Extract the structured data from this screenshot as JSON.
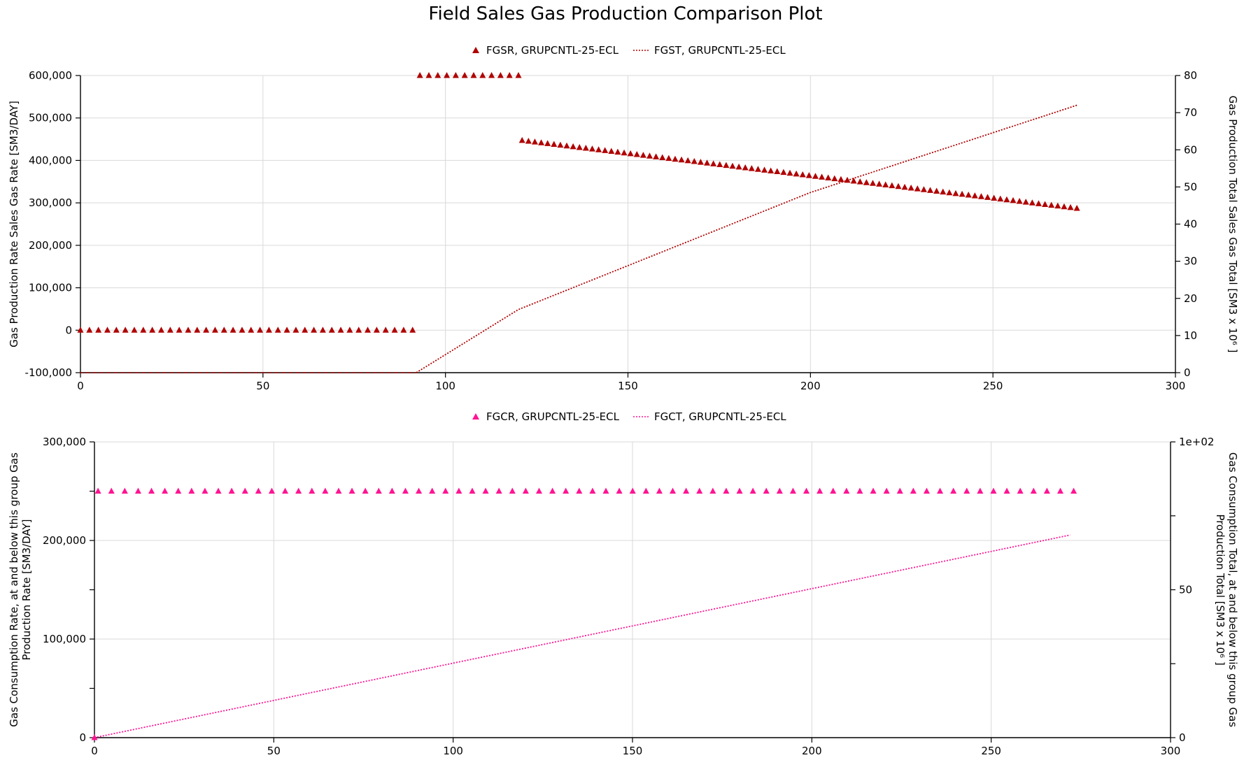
{
  "title": "Field Sales Gas Production Comparison Plot",
  "colors": {
    "panel1": "#b00000",
    "panel2": "#ff1493"
  },
  "chart_data": [
    {
      "type": "scatter",
      "legend": [
        {
          "label": "FGSR, GRUPCNTL-25-ECL",
          "marker": "triangle"
        },
        {
          "label": "FGST, GRUPCNTL-25-ECL",
          "marker": "dotted-line"
        }
      ],
      "x_axis": {
        "ticks": [
          0,
          50,
          100,
          150,
          200,
          250,
          300
        ],
        "tick_labels": [
          "0",
          "50",
          "100",
          "150",
          "200",
          "250",
          "300"
        ],
        "range": [
          0,
          300
        ]
      },
      "y_left": {
        "label": "Gas Production Rate Sales Gas Rate [SM3/DAY]",
        "range": [
          -100000,
          600000
        ],
        "ticks": [
          -100000,
          0,
          100000,
          200000,
          300000,
          400000,
          500000,
          600000
        ],
        "tick_labels": [
          "-100,000",
          "0",
          "100,000",
          "200,000",
          "300,000",
          "400,000",
          "500,000",
          "600,000"
        ]
      },
      "y_right": {
        "label": "Gas Production Total Sales Gas Total [SM3 x 10⁶ ]",
        "range": [
          0,
          80
        ],
        "ticks": [
          0,
          10,
          20,
          30,
          40,
          50,
          60,
          70,
          80
        ],
        "tick_labels": [
          "0",
          "10",
          "20",
          "30",
          "40",
          "50",
          "60",
          "70",
          "80"
        ]
      },
      "series": [
        {
          "name": "FGSR, GRUPCNTL-25-ECL",
          "axis": "left",
          "style": "triangle",
          "segments": [
            {
              "x_start": 0,
              "x_end": 91,
              "y_start": 0,
              "y_end": 0,
              "count": 38
            },
            {
              "x_start": 93,
              "x_end": 120,
              "y_start": 600000,
              "y_end": 600000,
              "count": 12
            },
            {
              "x_start": 121,
              "x_end": 273,
              "y_start": 447000,
              "y_end": 287000,
              "count": 88
            }
          ]
        },
        {
          "name": "FGST, GRUPCNTL-25-ECL",
          "axis": "right",
          "style": "dotted",
          "points": [
            [
              0,
              0
            ],
            [
              92,
              0
            ],
            [
              120,
              17
            ],
            [
              200,
              48.5
            ],
            [
              273,
              72
            ]
          ]
        }
      ],
      "grid": true
    },
    {
      "type": "scatter",
      "legend": [
        {
          "label": "FGCR, GRUPCNTL-25-ECL",
          "marker": "triangle"
        },
        {
          "label": "FGCT, GRUPCNTL-25-ECL",
          "marker": "dotted-line"
        }
      ],
      "x_axis": {
        "ticks": [
          0,
          50,
          100,
          150,
          200,
          250,
          300
        ],
        "tick_labels": [
          "0",
          "50",
          "100",
          "150",
          "200",
          "250",
          "300"
        ],
        "range": [
          0,
          300
        ]
      },
      "y_left": {
        "label_lines": [
          "Gas Consumption Rate, at and below this group Gas",
          "Production Rate [SM3/DAY]"
        ],
        "range": [
          0,
          300000
        ],
        "ticks": [
          0,
          100000,
          200000,
          300000
        ],
        "minor_ticks": [
          50000,
          150000,
          250000
        ],
        "tick_labels": [
          "0",
          "100,000",
          "200,000",
          "300,000"
        ]
      },
      "y_right": {
        "label_lines": [
          "Gas Consumption Total, at and below this group Gas",
          "Production Total [SM3 x 10⁶ ]"
        ],
        "range": [
          0,
          100
        ],
        "ticks": [
          0,
          50,
          100
        ],
        "minor_ticks": [
          25,
          75
        ],
        "tick_labels": [
          "0",
          "50",
          "1e+02"
        ]
      },
      "series": [
        {
          "name": "FGCR, GRUPCNTL-25-ECL",
          "axis": "left",
          "style": "triangle",
          "segments": [
            {
              "x_start": 0,
              "x_end": 0,
              "y_start": 0,
              "y_end": 0,
              "count": 1
            },
            {
              "x_start": 1,
              "x_end": 273,
              "y_start": 250000,
              "y_end": 250000,
              "count": 74
            }
          ]
        },
        {
          "name": "FGCT, GRUPCNTL-25-ECL",
          "axis": "right",
          "style": "dotted",
          "points": [
            [
              0,
              0
            ],
            [
              272,
              68.5
            ]
          ]
        }
      ],
      "grid": true
    }
  ]
}
